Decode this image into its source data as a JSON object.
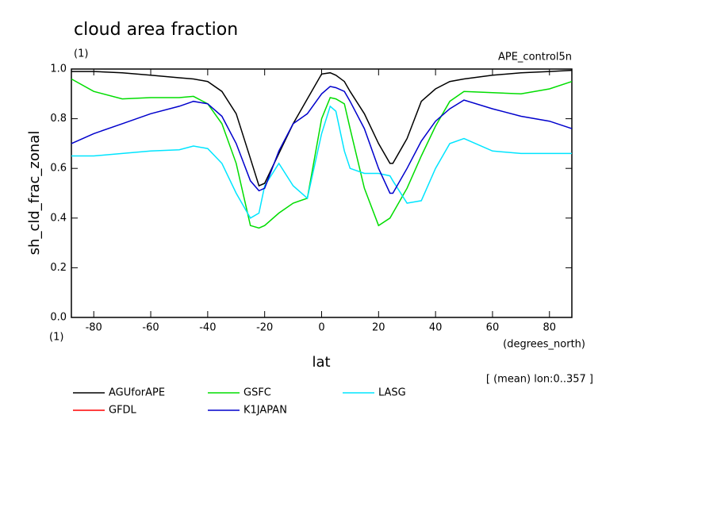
{
  "chart_data": {
    "type": "line",
    "title": "cloud area fraction",
    "subtitle": "(1)",
    "run_label": "APE_control5n",
    "y_label": "sh_cld_frac_zonal",
    "y_units": "(1)",
    "x_label": "lat",
    "x_units": "(degrees_north)",
    "note": "[ (mean) lon:0..357 ]",
    "xlim": [
      -87.86,
      87.86
    ],
    "ylim": [
      0,
      1
    ],
    "xticks": [
      -80,
      -60,
      -40,
      -20,
      0,
      20,
      40,
      60,
      80
    ],
    "yticks": [
      {
        "value": 0,
        "label": "0.0"
      },
      0.2,
      0.4,
      0.6,
      0.8,
      {
        "value": 1,
        "label": "1.0"
      }
    ],
    "x": [
      -87.86,
      -80,
      -70,
      -60,
      -50,
      -45,
      -40,
      -35,
      -30,
      -25,
      -22,
      -20,
      -15,
      -10,
      -5,
      0,
      3,
      5,
      8,
      10,
      15,
      20,
      24,
      25,
      30,
      35,
      40,
      45,
      50,
      60,
      70,
      80,
      87.86
    ],
    "series": [
      {
        "name": "AGUforAPE",
        "color": "#000000",
        "values": [
          0.99,
          0.99,
          0.985,
          0.975,
          0.965,
          0.96,
          0.95,
          0.91,
          0.82,
          0.64,
          0.53,
          0.54,
          0.66,
          0.78,
          0.88,
          0.98,
          0.985,
          0.975,
          0.95,
          0.91,
          0.82,
          0.7,
          0.62,
          0.62,
          0.72,
          0.87,
          0.92,
          0.95,
          0.96,
          0.975,
          0.985,
          0.99,
          0.995
        ]
      },
      {
        "name": "GSFC",
        "color": "#00dd00",
        "values": [
          0.96,
          0.91,
          0.88,
          0.885,
          0.885,
          0.89,
          0.86,
          0.78,
          0.62,
          0.37,
          0.36,
          0.37,
          0.42,
          0.46,
          0.48,
          0.8,
          0.885,
          0.88,
          0.86,
          0.76,
          0.52,
          0.37,
          0.4,
          0.42,
          0.52,
          0.65,
          0.77,
          0.87,
          0.91,
          0.905,
          0.9,
          0.92,
          0.95
        ]
      },
      {
        "name": "LASG",
        "color": "#00e5ff",
        "values": [
          0.65,
          0.65,
          0.66,
          0.67,
          0.675,
          0.69,
          0.68,
          0.62,
          0.5,
          0.4,
          0.42,
          0.53,
          0.62,
          0.53,
          0.48,
          0.74,
          0.85,
          0.83,
          0.67,
          0.6,
          0.58,
          0.58,
          0.57,
          0.55,
          0.46,
          0.47,
          0.6,
          0.7,
          0.72,
          0.67,
          0.66,
          0.66,
          0.66
        ]
      },
      {
        "name": "GFDL",
        "color": "#ff0000",
        "values": [
          null,
          null,
          null,
          null,
          null,
          null,
          null,
          null,
          null,
          null,
          null,
          null,
          null,
          null,
          null,
          null,
          null,
          null,
          null,
          null,
          null,
          null,
          null,
          null,
          null,
          null,
          null,
          null,
          null,
          null,
          null,
          null,
          null
        ]
      },
      {
        "name": "K1JAPAN",
        "color": "#0000cc",
        "values": [
          0.7,
          0.74,
          0.78,
          0.82,
          0.85,
          0.87,
          0.86,
          0.81,
          0.7,
          0.55,
          0.51,
          0.52,
          0.67,
          0.78,
          0.82,
          0.9,
          0.93,
          0.925,
          0.91,
          0.87,
          0.76,
          0.6,
          0.5,
          0.5,
          0.6,
          0.71,
          0.79,
          0.84,
          0.875,
          0.84,
          0.81,
          0.79,
          0.76
        ]
      }
    ]
  }
}
